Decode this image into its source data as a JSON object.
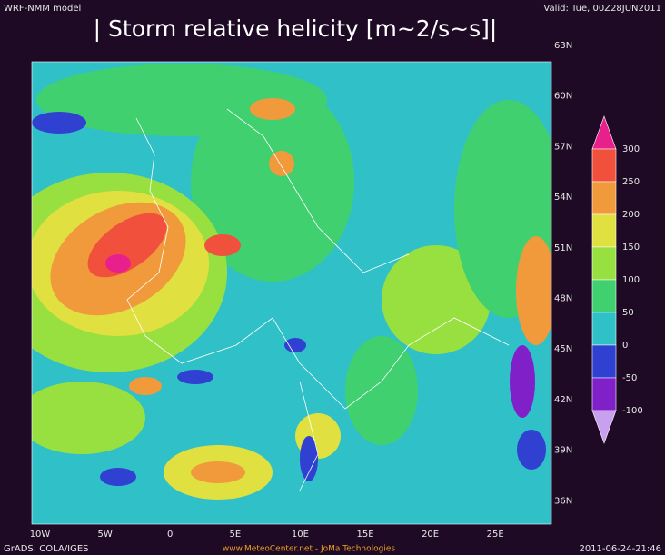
{
  "header": {
    "model": "WRF-NMM model",
    "valid": "Valid: Tue, 00Z28JUN2011",
    "title": "| Storm relative helicity [m~2/s~s]|"
  },
  "map": {
    "lat_labels": [
      "63N",
      "60N",
      "57N",
      "54N",
      "51N",
      "48N",
      "45N",
      "42N",
      "39N",
      "36N"
    ],
    "lon_labels": [
      "10W",
      "5W",
      "0",
      "5E",
      "10E",
      "15E",
      "20E",
      "25E"
    ]
  },
  "colorbar": {
    "levels": [
      300,
      250,
      200,
      150,
      100,
      50,
      0,
      -50,
      -100
    ],
    "colors": [
      "#e8208c",
      "#f0503c",
      "#f09a3c",
      "#e0e040",
      "#98e040",
      "#40d070",
      "#30c0c8",
      "#3040d0",
      "#8020c8",
      "#c8a0f0"
    ]
  },
  "footer": {
    "left": "GrADS: COLA/IGES",
    "center": "www.MeteoCenter.net  -  JoMa Technologies",
    "right": "2011-06-24-21:46"
  }
}
